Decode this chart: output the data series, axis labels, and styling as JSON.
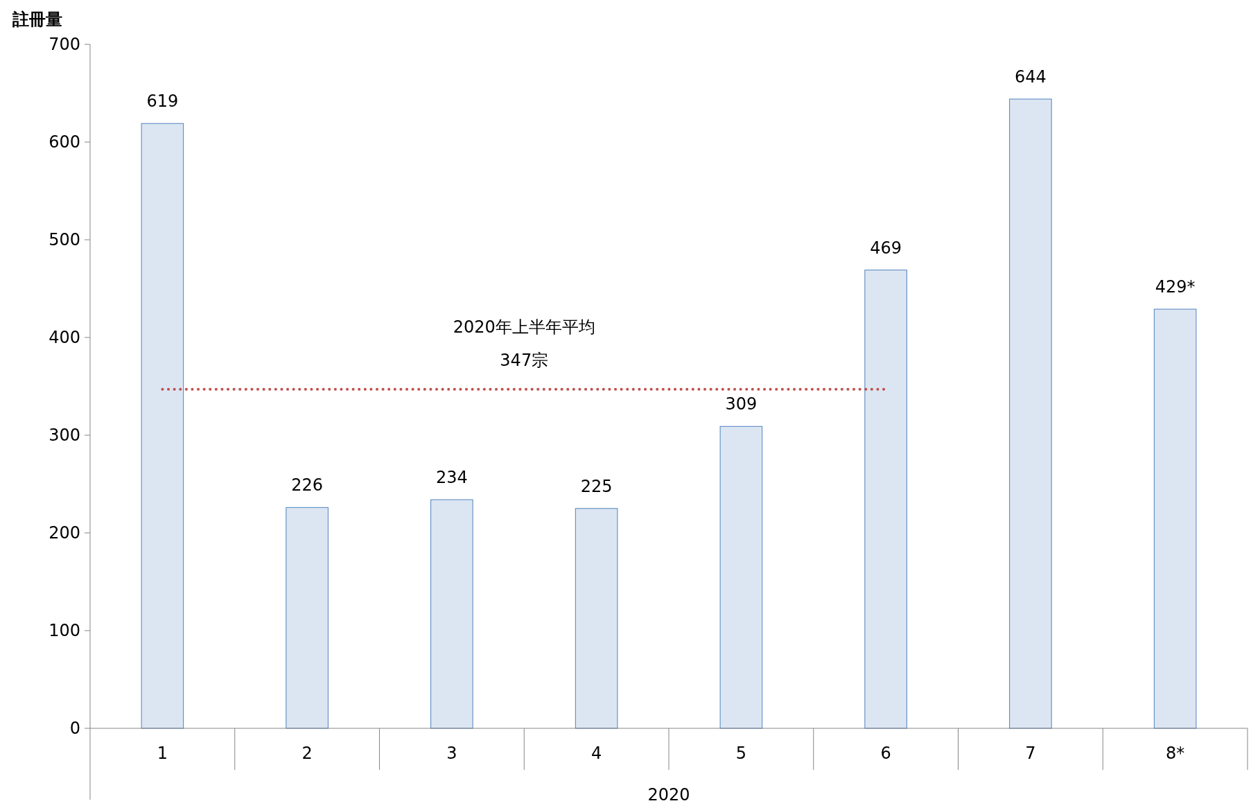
{
  "chart_data": {
    "type": "bar",
    "ylabel": "註冊量",
    "xlabel": "2020",
    "categories": [
      "1",
      "2",
      "3",
      "4",
      "5",
      "6",
      "7",
      "8*"
    ],
    "values": [
      619,
      226,
      234,
      225,
      309,
      469,
      644,
      429
    ],
    "value_labels": [
      "619",
      "226",
      "234",
      "225",
      "309",
      "469",
      "644",
      "429*"
    ],
    "color": "#dce6f2",
    "ylim": [
      0,
      700
    ],
    "yticks": [
      0,
      100,
      200,
      300,
      400,
      500,
      600,
      700
    ],
    "grid": false,
    "ref_lines": [
      {
        "axis": "y",
        "value": 347,
        "label": "2020年上半年平均\n347宗",
        "color": "#c0504d",
        "line_style": "dotted"
      }
    ]
  }
}
